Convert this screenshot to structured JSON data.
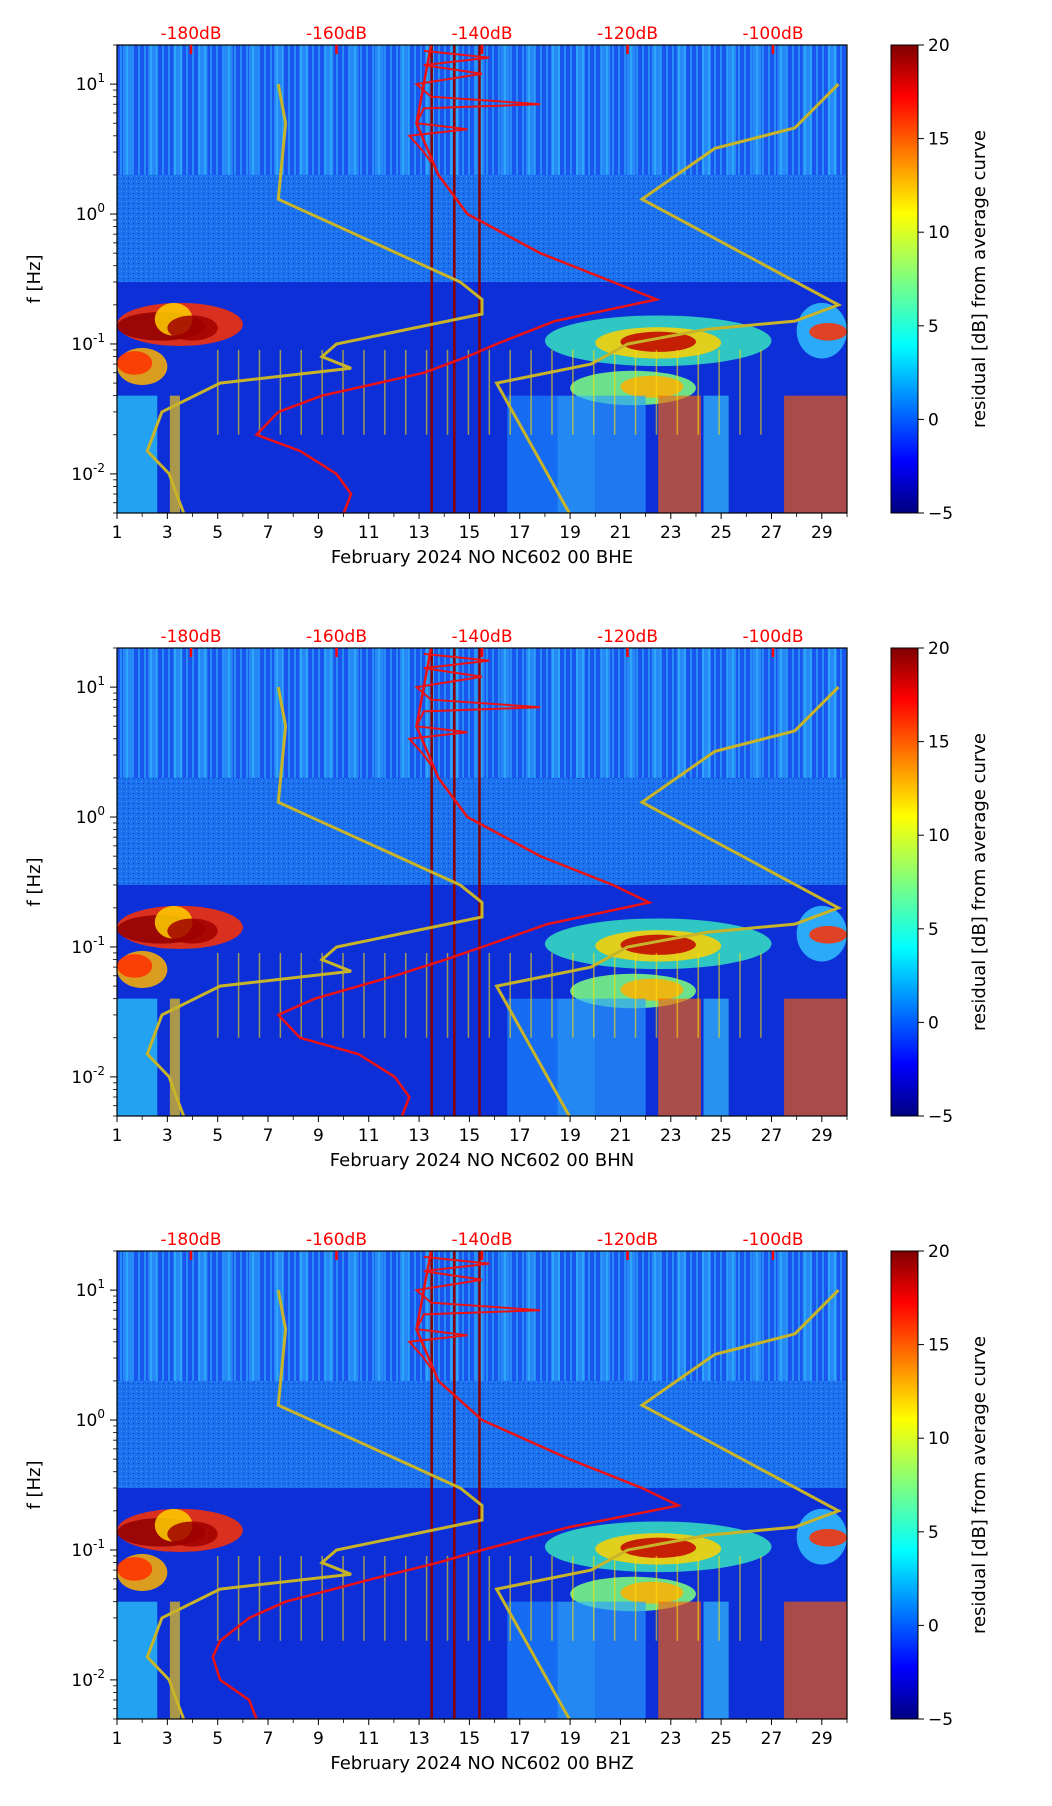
{
  "colors": {
    "reference_curves": "#c8b428",
    "mean_curve": "#ee1111",
    "top_axis_labels": "#ff0000",
    "background": "#0d2fd8"
  },
  "chart_data": [
    {
      "type": "heatmap",
      "xlabel": "February 2024 NO NC602 00 BHE",
      "ylabel": "f [Hz]",
      "x_ticks": [
        "1",
        "3",
        "5",
        "7",
        "9",
        "11",
        "13",
        "15",
        "17",
        "19",
        "21",
        "23",
        "25",
        "27",
        "29"
      ],
      "x_range": [
        1,
        30
      ],
      "y_ticks": [
        "10^1",
        "10^0",
        "10^-1",
        "10^-2"
      ],
      "y_range_hz": [
        0.005,
        20
      ],
      "top_ticks": [
        "-180dB",
        "-160dB",
        "-140dB",
        "-120dB",
        "-100dB"
      ],
      "colorbar": {
        "label": "residual [dB] from average curve",
        "ticks": [
          "20",
          "15",
          "10",
          "5",
          "0",
          "−5"
        ],
        "range": [
          -5,
          20
        ],
        "cmap": "jet"
      },
      "mean_curve_db": [
        [
          20,
          -147
        ],
        [
          10,
          -148
        ],
        [
          5,
          -149
        ],
        [
          2,
          -146
        ],
        [
          1,
          -142
        ],
        [
          0.5,
          -132
        ],
        [
          0.3,
          -122
        ],
        [
          0.22,
          -116
        ],
        [
          0.15,
          -130
        ],
        [
          0.1,
          -138
        ],
        [
          0.08,
          -142
        ],
        [
          0.06,
          -148
        ],
        [
          0.04,
          -162
        ],
        [
          0.03,
          -168
        ],
        [
          0.02,
          -171
        ],
        [
          0.015,
          -165
        ],
        [
          0.01,
          -160
        ],
        [
          0.007,
          -158
        ],
        [
          0.005,
          -159
        ]
      ]
    },
    {
      "type": "heatmap",
      "xlabel": "February 2024 NO NC602 00 BHN",
      "ylabel": "f [Hz]",
      "x_ticks": [
        "1",
        "3",
        "5",
        "7",
        "9",
        "11",
        "13",
        "15",
        "17",
        "19",
        "21",
        "23",
        "25",
        "27",
        "29"
      ],
      "x_range": [
        1,
        30
      ],
      "y_ticks": [
        "10^1",
        "10^0",
        "10^-1",
        "10^-2"
      ],
      "y_range_hz": [
        0.005,
        20
      ],
      "top_ticks": [
        "-180dB",
        "-160dB",
        "-140dB",
        "-120dB",
        "-100dB"
      ],
      "colorbar": {
        "label": "residual [dB] from average curve",
        "ticks": [
          "20",
          "15",
          "10",
          "5",
          "0",
          "−5"
        ],
        "range": [
          -5,
          20
        ],
        "cmap": "jet"
      },
      "mean_curve_db": [
        [
          20,
          -147
        ],
        [
          10,
          -148
        ],
        [
          5,
          -149
        ],
        [
          2,
          -146
        ],
        [
          1,
          -142
        ],
        [
          0.5,
          -132
        ],
        [
          0.3,
          -122
        ],
        [
          0.22,
          -117
        ],
        [
          0.15,
          -131
        ],
        [
          0.1,
          -140
        ],
        [
          0.08,
          -145
        ],
        [
          0.06,
          -152
        ],
        [
          0.04,
          -163
        ],
        [
          0.03,
          -168
        ],
        [
          0.02,
          -165
        ],
        [
          0.015,
          -157
        ],
        [
          0.01,
          -152
        ],
        [
          0.007,
          -150
        ],
        [
          0.005,
          -151
        ]
      ]
    },
    {
      "type": "heatmap",
      "xlabel": "February 2024 NO NC602 00 BHZ",
      "ylabel": "f [Hz]",
      "x_ticks": [
        "1",
        "3",
        "5",
        "7",
        "9",
        "11",
        "13",
        "15",
        "17",
        "19",
        "21",
        "23",
        "25",
        "27",
        "29"
      ],
      "x_range": [
        1,
        30
      ],
      "y_ticks": [
        "10^1",
        "10^0",
        "10^-1",
        "10^-2"
      ],
      "y_range_hz": [
        0.005,
        20
      ],
      "top_ticks": [
        "-180dB",
        "-160dB",
        "-140dB",
        "-120dB",
        "-100dB"
      ],
      "colorbar": {
        "label": "residual [dB] from average curve",
        "ticks": [
          "20",
          "15",
          "10",
          "5",
          "0",
          "−5"
        ],
        "range": [
          -5,
          20
        ],
        "cmap": "jet"
      },
      "mean_curve_db": [
        [
          20,
          -147
        ],
        [
          10,
          -148
        ],
        [
          5,
          -149
        ],
        [
          2,
          -146
        ],
        [
          1,
          -140
        ],
        [
          0.5,
          -128
        ],
        [
          0.3,
          -118
        ],
        [
          0.22,
          -113
        ],
        [
          0.15,
          -128
        ],
        [
          0.1,
          -140
        ],
        [
          0.08,
          -146
        ],
        [
          0.06,
          -155
        ],
        [
          0.04,
          -167
        ],
        [
          0.03,
          -172
        ],
        [
          0.02,
          -176
        ],
        [
          0.015,
          -177
        ],
        [
          0.01,
          -176
        ],
        [
          0.007,
          -172
        ],
        [
          0.005,
          -171
        ]
      ]
    }
  ]
}
